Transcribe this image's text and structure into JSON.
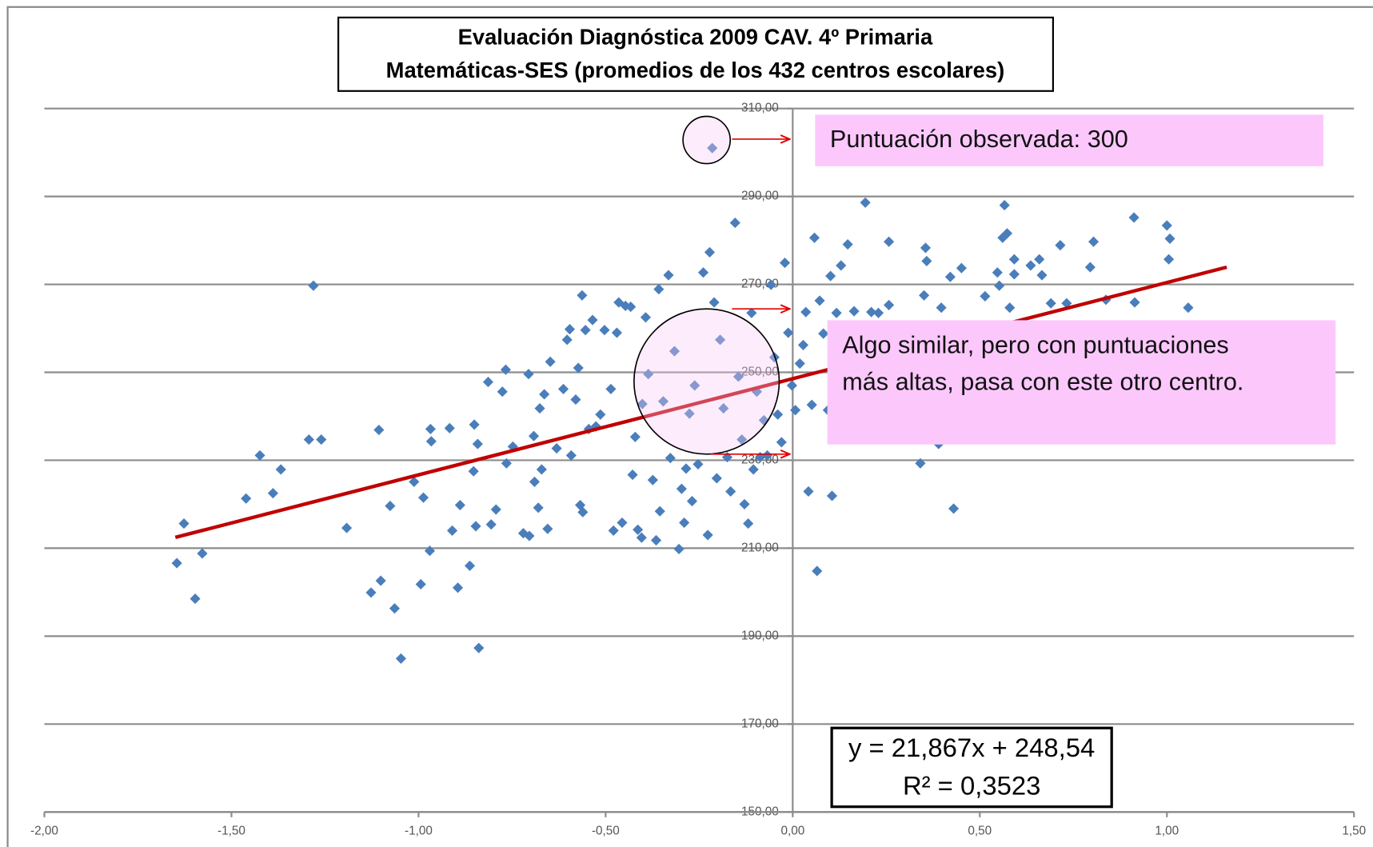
{
  "chart_data": {
    "type": "scatter",
    "title": [
      "Evaluación Diagnóstica 2009 CAV. 4º Primaria",
      "Matemáticas-SES (promedios de los 432 centros escolares)"
    ],
    "annotations": [
      [
        "Puntuación observada: 300"
      ],
      [
        "Algo similar, pero con puntuaciones",
        "más altas, pasa con este otro centro."
      ]
    ],
    "trendline": {
      "equation": "y = 21,867x + 248,54",
      "r2": "R² = 0,3523",
      "color": "#c00000",
      "x": [
        -1.65,
        1.16
      ],
      "y": [
        212.46,
        273.91
      ]
    },
    "xlim": [
      -2,
      1.5
    ],
    "ylim": [
      150,
      310
    ],
    "xticks": [
      {
        "value": -2,
        "label": "-2,00"
      },
      {
        "value": -1.5,
        "label": "-1,50"
      },
      {
        "value": -1,
        "label": "-1,00"
      },
      {
        "value": -0.5,
        "label": "-0,50"
      },
      {
        "value": 0,
        "label": "0,00"
      },
      {
        "value": 0.5,
        "label": "0,50"
      },
      {
        "value": 1,
        "label": "1,00"
      },
      {
        "value": 1.5,
        "label": "1,50"
      }
    ],
    "yticks": [
      {
        "value": 150,
        "label": "150,00"
      },
      {
        "value": 170,
        "label": "170,00"
      },
      {
        "value": 190,
        "label": "190,00"
      },
      {
        "value": 210,
        "label": "210,00"
      },
      {
        "value": 230,
        "label": "230,00"
      },
      {
        "value": 250,
        "label": "250,00"
      },
      {
        "value": 270,
        "label": "270,00"
      },
      {
        "value": 290,
        "label": "290,00"
      },
      {
        "value": 310,
        "label": "310,00"
      }
    ],
    "grid": true,
    "series": [
      {
        "color": "#4a7ebb",
        "x": [
          -1.646,
          -1.627,
          -1.597,
          -1.578,
          -1.461,
          -1.424,
          -1.389,
          -1.368,
          -1.293,
          -1.281,
          -1.26,
          -1.192,
          -1.127,
          -1.106,
          -1.101,
          -1.076,
          -1.064,
          -1.047,
          -1.012,
          -0.994,
          -0.987,
          -0.97,
          -0.968,
          -0.966,
          -0.917,
          -0.91,
          -0.895,
          -0.889,
          -0.863,
          -0.853,
          -0.851,
          -0.847,
          -0.842,
          -0.839,
          -0.814,
          -0.806,
          -0.793,
          -0.776,
          -0.767,
          -0.765,
          -0.748,
          -0.72,
          -0.704,
          -0.706,
          -0.692,
          -0.69,
          -0.68,
          -0.676,
          -0.671,
          -0.664,
          -0.655,
          -0.648,
          -0.631,
          -0.613,
          -0.603,
          -0.596,
          -0.592,
          -0.58,
          -0.573,
          -0.568,
          -0.563,
          -0.561,
          -0.554,
          -0.545,
          -0.535,
          -0.526,
          -0.514,
          -0.503,
          -0.486,
          -0.479,
          -0.47,
          -0.465,
          -0.456,
          -0.447,
          -0.433,
          -0.428,
          -0.421,
          -0.414,
          -0.404,
          -0.402,
          -0.393,
          -0.386,
          -0.374,
          -0.365,
          -0.358,
          -0.355,
          -0.346,
          -0.332,
          -0.327,
          -0.316,
          -0.304,
          -0.297,
          -0.29,
          -0.285,
          -0.276,
          -0.269,
          -0.262,
          -0.253,
          -0.239,
          -0.227,
          -0.222,
          -0.215,
          -0.21,
          -0.203,
          -0.194,
          -0.185,
          -0.175,
          -0.166,
          -0.154,
          -0.145,
          -0.136,
          -0.129,
          -0.119,
          -0.11,
          -0.105,
          -0.096,
          -0.087,
          -0.077,
          -0.068,
          -0.058,
          -0.049,
          -0.04,
          -0.03,
          -0.021,
          -0.012,
          -0.002,
          0.007,
          0.019,
          0.028,
          0.035,
          0.042,
          0.051,
          0.058,
          0.065,
          0.072,
          0.082,
          0.094,
          0.101,
          0.105,
          0.117,
          0.129,
          0.147,
          0.164,
          0.194,
          0.21,
          0.229,
          0.257,
          0.257,
          0.341,
          0.351,
          0.355,
          0.358,
          0.397,
          0.39,
          0.43,
          0.421,
          0.451,
          0.514,
          0.547,
          0.552,
          0.561,
          0.566,
          0.573,
          0.58,
          0.592,
          0.592,
          0.636,
          0.659,
          0.666,
          0.69,
          0.715,
          0.732,
          0.795,
          0.804,
          0.837,
          0.912,
          0.914,
          1.0,
          1.008,
          1.005,
          1.057
        ],
        "y": [
          206.6,
          215.6,
          198.5,
          208.8,
          221.3,
          231.1,
          222.5,
          227.9,
          234.7,
          269.7,
          234.7,
          214.6,
          199.9,
          236.9,
          202.6,
          219.6,
          196.3,
          184.9,
          225.1,
          201.8,
          221.5,
          209.4,
          237.1,
          234.3,
          237.3,
          214.0,
          201.0,
          219.8,
          206.0,
          227.5,
          238.1,
          215.0,
          233.7,
          187.3,
          247.8,
          215.4,
          218.8,
          245.6,
          250.6,
          229.3,
          233.1,
          213.4,
          212.8,
          249.6,
          235.5,
          225.1,
          219.2,
          241.8,
          227.9,
          245.0,
          214.4,
          252.4,
          232.7,
          246.2,
          257.4,
          259.8,
          231.1,
          243.8,
          251.0,
          219.8,
          267.5,
          218.2,
          259.6,
          237.1,
          261.9,
          237.7,
          240.4,
          259.6,
          246.2,
          214.0,
          259.0,
          265.9,
          215.8,
          265.1,
          264.9,
          226.7,
          235.3,
          214.2,
          212.4,
          242.8,
          262.5,
          249.6,
          225.5,
          211.8,
          268.9,
          218.4,
          243.4,
          272.1,
          230.5,
          254.8,
          209.8,
          223.5,
          215.8,
          228.1,
          240.6,
          220.7,
          247.0,
          229.1,
          272.7,
          213.0,
          277.3,
          301.0,
          265.9,
          225.9,
          257.4,
          241.8,
          230.7,
          222.9,
          284.0,
          249.0,
          234.7,
          220.0,
          215.6,
          263.5,
          227.9,
          245.6,
          230.7,
          239.1,
          231.1,
          269.9,
          253.4,
          240.4,
          234.1,
          274.9,
          259.0,
          247.0,
          241.4,
          252.0,
          256.2,
          263.7,
          222.9,
          242.6,
          280.6,
          204.8,
          266.3,
          258.8,
          241.4,
          271.9,
          221.9,
          263.5,
          274.3,
          279.1,
          263.9,
          288.6,
          263.7,
          263.5,
          279.7,
          265.3,
          229.3,
          267.5,
          278.3,
          275.3,
          264.7,
          233.7,
          219.0,
          271.7,
          273.7,
          267.3,
          272.7,
          269.7,
          280.6,
          288.0,
          281.6,
          264.7,
          275.7,
          272.3,
          274.3,
          275.7,
          272.1,
          265.7,
          278.9,
          265.7,
          273.9,
          279.7,
          266.5,
          285.2,
          265.9,
          283.4,
          280.4,
          275.7,
          264.7
        ]
      }
    ]
  }
}
